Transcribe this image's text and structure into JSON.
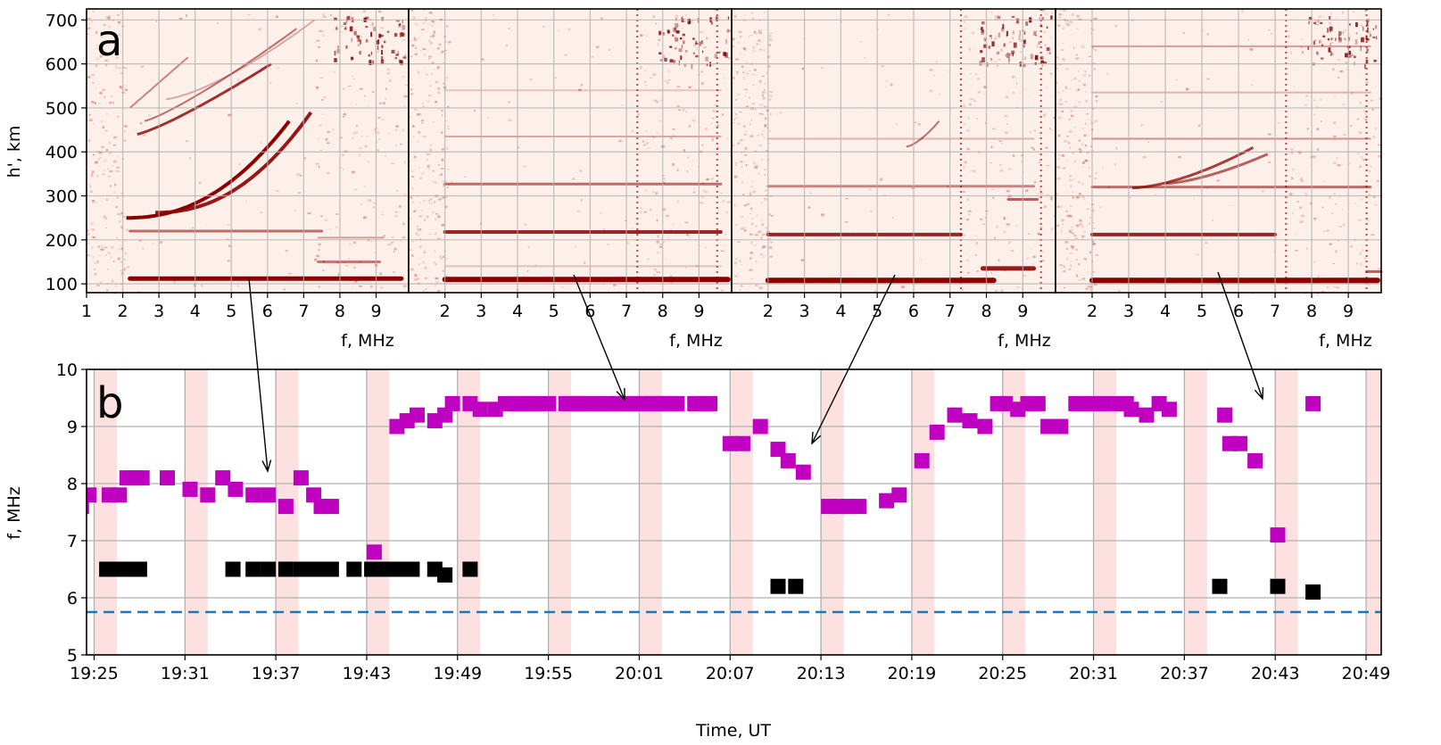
{
  "chart_data": [
    {
      "type": "heatmap",
      "panel_label": "a",
      "panels": 4,
      "xlabel": "f, MHz",
      "ylabel": "h', km",
      "xlim": [
        1,
        9.9
      ],
      "ylim": [
        80,
        725
      ],
      "x_ticks_first_panel": [
        "1",
        "2",
        "3",
        "4",
        "5",
        "6",
        "7",
        "8",
        "9"
      ],
      "x_ticks_other_panels": [
        "2",
        "3",
        "4",
        "5",
        "6",
        "7",
        "8",
        "9"
      ],
      "y_ticks": [
        "100",
        "200",
        "300",
        "400",
        "500",
        "600",
        "700"
      ],
      "colormap": "white-to-dark-red",
      "grid": true,
      "traces": [
        {
          "panel": 1,
          "lines": [
            {
              "f": [
                2.2,
                9.7
              ],
              "h": [
                112,
                112
              ],
              "strength": 1.0,
              "width": 5
            },
            {
              "f": [
                2.2,
                7.5
              ],
              "h": [
                220,
                220
              ],
              "strength": 0.55,
              "width": 3
            },
            {
              "f": [
                7.4,
                9.1
              ],
              "h": [
                150,
                150
              ],
              "strength": 0.5,
              "width": 3
            },
            {
              "f": [
                7.4,
                9.2
              ],
              "h": [
                205,
                205
              ],
              "strength": 0.35,
              "width": 2
            }
          ],
          "curves": [
            {
              "f0": 2.1,
              "f1": 6.6,
              "h0": 250,
              "h1": 470,
              "p": 2.2,
              "strength": 1.0,
              "width": 4
            },
            {
              "f0": 2.9,
              "f1": 7.2,
              "h0": 262,
              "h1": 490,
              "p": 2.2,
              "strength": 0.9,
              "width": 4
            },
            {
              "f0": 2.4,
              "f1": 6.1,
              "h0": 440,
              "h1": 600,
              "p": 1.2,
              "strength": 0.8,
              "width": 3
            },
            {
              "f0": 2.6,
              "f1": 6.8,
              "h0": 470,
              "h1": 680,
              "p": 1.2,
              "strength": 0.55,
              "width": 2
            },
            {
              "f0": 2.2,
              "f1": 3.8,
              "h0": 500,
              "h1": 615,
              "p": 1.0,
              "strength": 0.45,
              "width": 2
            },
            {
              "f0": 3.2,
              "f1": 7.3,
              "h0": 520,
              "h1": 700,
              "p": 1.4,
              "strength": 0.3,
              "width": 2
            }
          ]
        },
        {
          "panel": 2,
          "lines": [
            {
              "f": [
                2.0,
                9.8
              ],
              "h": [
                110,
                110
              ],
              "strength": 1.0,
              "width": 6
            },
            {
              "f": [
                2.0,
                9.6
              ],
              "h": [
                218,
                218
              ],
              "strength": 0.85,
              "width": 4
            },
            {
              "f": [
                2.0,
                9.6
              ],
              "h": [
                327,
                327
              ],
              "strength": 0.55,
              "width": 3
            },
            {
              "f": [
                2.0,
                9.6
              ],
              "h": [
                435,
                435
              ],
              "strength": 0.3,
              "width": 2
            },
            {
              "f": [
                2.0,
                9.6
              ],
              "h": [
                540,
                540
              ],
              "strength": 0.18,
              "width": 2
            },
            {
              "f": [
                2.0,
                9.6
              ],
              "h": [
                140,
                140
              ],
              "strength": 0.2,
              "width": 2
            }
          ],
          "curves": []
        },
        {
          "panel": 3,
          "lines": [
            {
              "f": [
                2.0,
                8.2
              ],
              "h": [
                108,
                108
              ],
              "strength": 1.0,
              "width": 6
            },
            {
              "f": [
                2.0,
                7.3
              ],
              "h": [
                212,
                212
              ],
              "strength": 0.85,
              "width": 4
            },
            {
              "f": [
                2.0,
                9.3
              ],
              "h": [
                322,
                322
              ],
              "strength": 0.45,
              "width": 3
            },
            {
              "f": [
                2.0,
                9.3
              ],
              "h": [
                430,
                430
              ],
              "strength": 0.25,
              "width": 2
            },
            {
              "f": [
                7.9,
                9.3
              ],
              "h": [
                135,
                135
              ],
              "strength": 0.9,
              "width": 5
            },
            {
              "f": [
                8.6,
                9.4
              ],
              "h": [
                292,
                292
              ],
              "strength": 0.6,
              "width": 3
            }
          ],
          "curves": [
            {
              "f0": 5.8,
              "f1": 6.7,
              "h0": 412,
              "h1": 470,
              "p": 1.5,
              "strength": 0.55,
              "width": 2
            }
          ]
        },
        {
          "panel": 4,
          "lines": [
            {
              "f": [
                2.0,
                9.8
              ],
              "h": [
                108,
                108
              ],
              "strength": 1.0,
              "width": 6
            },
            {
              "f": [
                2.0,
                7.0
              ],
              "h": [
                212,
                212
              ],
              "strength": 0.85,
              "width": 4
            },
            {
              "f": [
                2.0,
                9.6
              ],
              "h": [
                320,
                320
              ],
              "strength": 0.55,
              "width": 3
            },
            {
              "f": [
                2.0,
                9.6
              ],
              "h": [
                430,
                430
              ],
              "strength": 0.4,
              "width": 2
            },
            {
              "f": [
                2.0,
                9.6
              ],
              "h": [
                535,
                535
              ],
              "strength": 0.25,
              "width": 2
            },
            {
              "f": [
                2.0,
                9.6
              ],
              "h": [
                640,
                640
              ],
              "strength": 0.35,
              "width": 2
            },
            {
              "f": [
                9.5,
                9.9
              ],
              "h": [
                128,
                128
              ],
              "strength": 0.6,
              "width": 3
            }
          ],
          "curves": [
            {
              "f0": 3.1,
              "f1": 6.4,
              "h0": 318,
              "h1": 410,
              "p": 1.6,
              "strength": 0.75,
              "width": 3
            },
            {
              "f0": 4.0,
              "f1": 6.8,
              "h0": 328,
              "h1": 395,
              "p": 1.5,
              "strength": 0.6,
              "width": 3
            }
          ]
        }
      ],
      "vertical_dotted_lines_f": [
        7.3,
        9.5
      ]
    },
    {
      "type": "scatter",
      "panel_label": "b",
      "xlabel": "Time, UT",
      "ylabel": "f, MHz",
      "ylim": [
        5,
        10
      ],
      "xlim": [
        "19:24",
        "20:50"
      ],
      "x_ticks": [
        "19:25",
        "19:31",
        "19:37",
        "19:43",
        "19:49",
        "19:55",
        "20:01",
        "20:07",
        "20:13",
        "20:19",
        "20:25",
        "20:31",
        "20:37",
        "20:43",
        "20:49"
      ],
      "y_ticks": [
        "5",
        "6",
        "7",
        "8",
        "9",
        "10"
      ],
      "grid": true,
      "reference_line": {
        "y": 5.75,
        "style": "dashed",
        "color": "#1f77b4"
      },
      "shaded_intervals": [
        [
          "19:25:00",
          "19:26:30"
        ],
        [
          "19:31:00",
          "19:32:30"
        ],
        [
          "19:37:00",
          "19:38:30"
        ],
        [
          "19:43:00",
          "19:44:30"
        ],
        [
          "19:49:00",
          "19:50:30"
        ],
        [
          "19:55:00",
          "19:56:30"
        ],
        [
          "20:01:00",
          "20:02:30"
        ],
        [
          "20:07:00",
          "20:08:30"
        ],
        [
          "20:13:00",
          "20:14:30"
        ],
        [
          "20:19:00",
          "20:20:30"
        ],
        [
          "20:25:00",
          "20:26:30"
        ],
        [
          "20:31:00",
          "20:32:30"
        ],
        [
          "20:37:00",
          "20:38:30"
        ],
        [
          "20:43:00",
          "20:44:30"
        ],
        [
          "20:49:00",
          "20:50:00"
        ]
      ],
      "series": [
        {
          "color": "#c000c0",
          "marker": "square",
          "x": [
            "19:24:10",
            "19:24:40",
            "19:26:00",
            "19:26:40",
            "19:27:10",
            "19:27:40",
            "19:28:10",
            "19:29:10",
            "19:30:10",
            "19:31:10",
            "19:32:10",
            "19:33:10",
            "19:34:10",
            "19:35:10",
            "19:36:10",
            "19:37:10",
            "19:38:10",
            "19:38:50",
            "19:39:50",
            "19:40:20",
            "19:41:20",
            "19:42:40",
            "19:43:30",
            "19:44:10",
            "19:44:50",
            "19:45:30",
            "19:46:30",
            "19:47:30",
            "19:48:10",
            "19:49:10",
            "19:49:50",
            "19:50:30",
            "19:51:30",
            "19:52:30",
            "19:53:30",
            "19:54:10",
            "19:54:50",
            "19:55:30",
            "19:56:30",
            "19:57:30",
            "19:58:10",
            "19:59:10",
            "19:59:50",
            "20:00:30",
            "20:01:10",
            "20:01:50",
            "20:03:10",
            "20:04:10",
            "20:04:50",
            "20:05:30",
            "20:06:10",
            "20:06:50",
            "20:07:50",
            "20:09:10",
            "20:10:10",
            "20:10:50",
            "20:11:50",
            "20:12:50",
            "20:13:50",
            "20:14:50",
            "20:15:10",
            "20:16:30",
            "20:18:10",
            "20:19:10",
            "20:19:50",
            "20:20:30",
            "20:21:10",
            "20:21:50",
            "20:22:30",
            "20:23:30",
            "20:24:10",
            "20:25:10",
            "20:25:50",
            "20:26:30",
            "20:27:30",
            "20:28:10",
            "20:28:50",
            "20:29:30",
            "20:30:10",
            "20:31:10",
            "20:31:50",
            "20:32:30",
            "20:33:10",
            "20:33:50",
            "20:34:30",
            "20:35:10",
            "20:36:10",
            "20:37:10",
            "20:38:10",
            "20:38:50",
            "20:41:10",
            "20:41:50",
            "20:43:10",
            "20:44:10"
          ],
          "y": [
            7.6,
            7.8,
            7.8,
            7.8,
            8.1,
            8.1,
            8.1,
            8.1,
            7.9,
            7.8,
            8.1,
            7.9,
            7.8,
            7.8,
            7.6,
            8.1,
            7.8,
            7.6,
            7.6,
            6.8,
            9.0,
            9.1,
            9.2,
            9.1,
            9.2,
            9.4,
            9.4,
            9.4,
            9.3,
            9.3,
            9.4,
            9.4,
            9.4,
            9.4,
            9.4,
            9.4,
            9.4,
            9.4,
            9.4,
            9.4,
            9.4,
            9.4,
            8.7,
            8.7,
            9.0,
            8.6,
            8.4,
            8.2,
            7.6,
            7.6,
            7.6,
            7.6,
            7.7,
            7.8,
            8.4,
            8.9,
            9.2,
            9.1,
            9.0,
            9.4,
            9.4,
            9.3,
            9.0,
            9.0,
            9.4,
            9.4,
            9.4,
            9.4,
            9.3,
            9.2,
            9.4,
            9.3,
            9.2,
            8.7,
            8.7,
            8.4,
            7.1,
            9.4,
            9.4,
            9.4,
            9.4,
            9.4,
            9.4,
            9.4,
            9.4,
            9.4,
            9.4,
            9.4,
            9.4,
            9.4,
            9.4,
            9.4,
            9.4,
            9.4
          ],
          "x_exact": [
            "19:24:10",
            "19:24:40",
            "19:26:00",
            "19:26:40",
            "19:27:10",
            "19:27:40",
            "19:28:10",
            "19:29:50",
            "19:31:20",
            "19:32:30",
            "19:33:30",
            "19:34:20",
            "19:35:30",
            "19:36:30",
            "19:37:40",
            "19:38:40",
            "19:39:30",
            "19:40:00",
            "19:40:40",
            "19:43:30",
            "19:45:00",
            "19:45:40",
            "19:46:20",
            "19:47:30",
            "19:48:10",
            "19:48:40",
            "19:49:50",
            "19:50:30",
            "19:51:30",
            "19:52:10",
            "19:52:50",
            "19:53:10",
            "19:53:40",
            "19:54:10",
            "19:56:10",
            "19:57:00",
            "19:57:40",
            "19:58:20",
            "19:59:00",
            "20:00:10",
            "20:01:10",
            "20:02:10",
            "20:07:00",
            "20:07:50",
            "20:09:00",
            "20:10:10",
            "20:10:50",
            "20:11:50",
            "20:13:30",
            "20:14:10",
            "20:14:50",
            "20:15:30",
            "20:17:20",
            "20:18:10",
            "20:19:40",
            "20:20:40",
            "20:21:50",
            "20:22:50",
            "20:23:50",
            "20:24:40",
            "20:25:10",
            "20:26:00",
            "20:28:00",
            "20:28:50",
            "20:29:50",
            "20:30:20",
            "20:31:00",
            "20:31:40",
            "20:33:30",
            "20:34:30",
            "20:35:20",
            "20:36:00",
            "20:39:40",
            "20:40:00",
            "20:40:40",
            "20:41:40",
            "20:43:10",
            "20:45:30",
            "20:01:50",
            "20:02:30",
            "20:03:00",
            "20:03:30",
            "20:04:40",
            "20:05:10",
            "20:05:40",
            "20:26:40",
            "20:27:20",
            "20:32:40",
            "20:33:10",
            "19:55:00",
            "19:56:40",
            "19:57:10",
            "19:59:40",
            "20:00:40"
          ],
          "y_exact": [
            7.6,
            7.8,
            7.8,
            7.8,
            8.1,
            8.1,
            8.1,
            8.1,
            7.9,
            7.8,
            8.1,
            7.9,
            7.8,
            7.8,
            7.6,
            8.1,
            7.8,
            7.6,
            7.6,
            6.8,
            9.0,
            9.1,
            9.2,
            9.1,
            9.2,
            9.4,
            9.4,
            9.3,
            9.3,
            9.4,
            9.4,
            9.4,
            9.4,
            9.4,
            9.4,
            9.4,
            9.4,
            9.4,
            9.4,
            9.4,
            9.4,
            9.4,
            8.7,
            8.7,
            9.0,
            8.6,
            8.4,
            8.2,
            7.6,
            7.6,
            7.6,
            7.6,
            7.7,
            7.8,
            8.4,
            8.9,
            9.2,
            9.1,
            9.0,
            9.4,
            9.4,
            9.3,
            9.0,
            9.0,
            9.4,
            9.4,
            9.4,
            9.4,
            9.3,
            9.2,
            9.4,
            9.3,
            9.2,
            8.7,
            8.7,
            8.4,
            7.1,
            9.4,
            9.4,
            9.4,
            9.4,
            9.4,
            9.4,
            9.4,
            9.4,
            9.4,
            9.4,
            9.4,
            9.4,
            9.4,
            9.4,
            9.4,
            9.4,
            9.4
          ]
        },
        {
          "color": "#000000",
          "marker": "square",
          "x": [
            "19:25:50",
            "19:26:30",
            "19:27:00",
            "19:27:30",
            "19:28:00",
            "19:34:10",
            "19:35:30",
            "19:36:30",
            "19:37:40",
            "19:38:40",
            "19:39:30",
            "19:40:00",
            "19:40:40",
            "19:42:10",
            "19:43:20",
            "19:44:00",
            "19:44:40",
            "19:45:20",
            "19:46:00",
            "19:47:30",
            "19:48:10",
            "19:49:50",
            "20:10:10",
            "20:11:20",
            "20:39:20",
            "20:43:10",
            "20:45:30"
          ],
          "y": [
            6.5,
            6.5,
            6.5,
            6.5,
            6.5,
            6.5,
            6.5,
            6.5,
            6.5,
            6.5,
            6.5,
            6.5,
            6.5,
            6.5,
            6.5,
            6.5,
            6.5,
            6.5,
            6.5,
            6.5,
            6.4,
            6.5,
            6.2,
            6.2,
            6.2,
            6.2,
            6.1
          ]
        }
      ]
    }
  ]
}
